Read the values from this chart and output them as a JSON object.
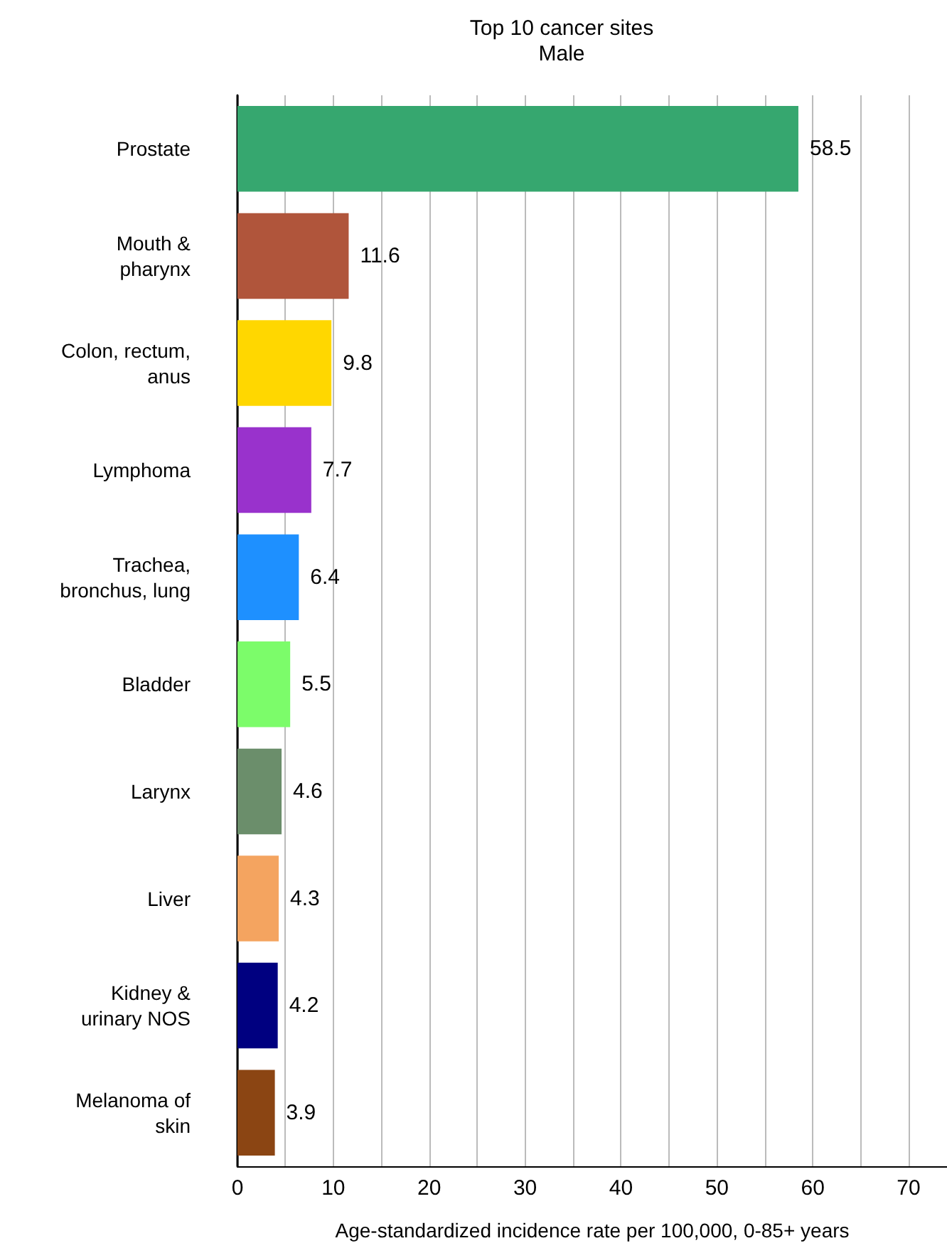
{
  "chart_data": {
    "type": "bar",
    "orientation": "horizontal",
    "title": "Top 10 cancer sites\nMale",
    "xlabel": "Age-standardized incidence rate per 100,000, 0-85+ years",
    "categories": [
      "Prostate",
      "Mouth &\npharynx",
      "Colon, rectum,\nanus",
      "Lymphoma",
      "Trachea,\nbronchus, lung",
      "Bladder",
      "Larynx",
      "Liver",
      "Kidney &\nurinary NOS",
      "Melanoma of\nskin"
    ],
    "values": [
      58.5,
      11.6,
      9.8,
      7.7,
      6.4,
      5.5,
      4.6,
      4.3,
      4.2,
      3.9
    ],
    "colors": [
      "#36a76f",
      "#b0553b",
      "#ffd700",
      "#9932cc",
      "#1e90ff",
      "#7cfc6a",
      "#6b8e6b",
      "#f4a460",
      "#000080",
      "#8b4513"
    ],
    "xlim": [
      0,
      74
    ],
    "xticks": [
      0,
      {
        "value": 5,
        "label": null
      },
      10,
      {
        "value": 15,
        "label": null
      },
      20,
      {
        "value": 25,
        "label": null
      },
      30,
      {
        "value": 35,
        "label": null
      },
      40,
      {
        "value": 45,
        "label": null
      },
      50,
      {
        "value": 55,
        "label": null
      },
      60,
      {
        "value": 65,
        "label": null
      },
      70
    ],
    "grid": "x",
    "data_labels": true
  }
}
